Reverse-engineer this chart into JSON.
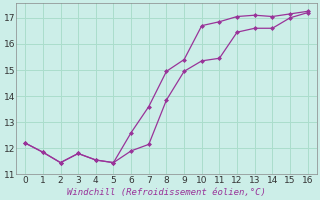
{
  "line1_x": [
    0,
    1,
    2,
    3,
    4,
    5,
    6,
    7,
    8,
    9,
    10,
    11,
    12,
    13,
    14,
    15,
    16
  ],
  "line1_y": [
    12.2,
    11.85,
    11.45,
    11.8,
    11.55,
    11.45,
    11.9,
    12.15,
    13.85,
    14.95,
    15.35,
    15.45,
    16.45,
    16.6,
    16.6,
    17.0,
    17.2
  ],
  "line2_x": [
    0,
    1,
    2,
    3,
    4,
    5,
    6,
    7,
    8,
    9,
    10,
    11,
    12,
    13,
    14,
    15,
    16
  ],
  "line2_y": [
    12.2,
    11.85,
    11.45,
    11.8,
    11.55,
    11.45,
    12.6,
    13.6,
    14.95,
    15.4,
    16.7,
    16.85,
    17.05,
    17.1,
    17.05,
    17.15,
    17.25
  ],
  "line_color": "#993399",
  "bg_color": "#cceee8",
  "grid_color": "#aaddcc",
  "xlabel": "Windchill (Refroidissement éolien,°C)",
  "xlim": [
    -0.5,
    16.5
  ],
  "ylim": [
    11.0,
    17.55
  ],
  "xticks": [
    0,
    1,
    2,
    3,
    4,
    5,
    6,
    7,
    8,
    9,
    10,
    11,
    12,
    13,
    14,
    15,
    16
  ],
  "yticks": [
    11,
    12,
    13,
    14,
    15,
    16,
    17
  ],
  "xlabel_fontsize": 6.5,
  "tick_fontsize": 6.5
}
